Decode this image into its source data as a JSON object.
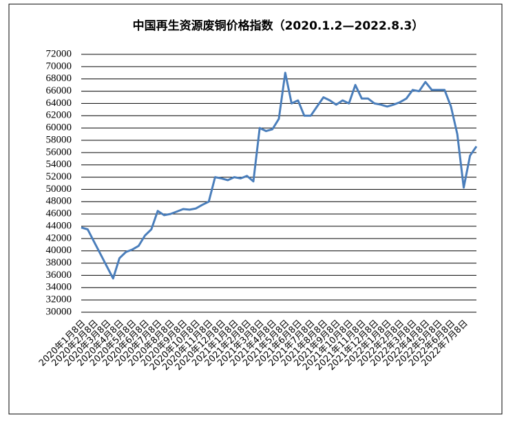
{
  "chart_data": {
    "type": "line",
    "title": "中国再生资源废铜价格指数（2020.1.2—2022.8.3）",
    "categories": [
      "2020年1月8日",
      null,
      "2020年2月8日",
      null,
      "2020年3月8日",
      null,
      "2020年4月8日",
      null,
      "2020年5月8日",
      null,
      "2020年6月8日",
      null,
      "2020年7月8日",
      null,
      "2020年8月8日",
      null,
      "2020年9月8日",
      null,
      "2020年10月8日",
      null,
      "2020年11月8日",
      null,
      "2020年12月8日",
      null,
      "2021年1月8日",
      null,
      "2021年2月8日",
      null,
      "2021年3月8日",
      null,
      "2021年4月8日",
      null,
      "2021年5月8日",
      null,
      "2021年6月8日",
      null,
      "2021年7月8日",
      null,
      "2021年8月8日",
      null,
      "2021年9月8日",
      null,
      "2021年10月8日",
      null,
      "2021年11月8日",
      null,
      "2021年12月8日",
      null,
      "2022年1月8日",
      null,
      "2022年2月8日",
      null,
      "2022年3月8日",
      null,
      "2022年4月8日",
      null,
      "2022年5月8日",
      null,
      "2022年6月8日",
      null,
      "2022年7月8日",
      null,
      null
    ],
    "series": [
      {
        "color": "#4a7ebb",
        "values": [
          43800,
          43500,
          41500,
          39500,
          37500,
          35500,
          38800,
          39800,
          40200,
          40800,
          42500,
          43500,
          46500,
          45800,
          46000,
          46400,
          46800,
          46700,
          46900,
          47500,
          48000,
          52000,
          51800,
          51500,
          52000,
          51800,
          52200,
          51300,
          60000,
          59500,
          59800,
          61500,
          69000,
          64000,
          64500,
          62000,
          62000,
          63500,
          65000,
          64500,
          63800,
          64500,
          64000,
          67000,
          64800,
          64800,
          64000,
          63800,
          63500,
          63800,
          64200,
          64800,
          66200,
          66000,
          67500,
          66200,
          66200,
          66200,
          63500,
          59000,
          50300,
          55500,
          57000
        ]
      }
    ],
    "ylim": [
      30000,
      72000
    ],
    "yticks": [
      30000,
      32000,
      34000,
      36000,
      38000,
      40000,
      42000,
      44000,
      46000,
      48000,
      50000,
      52000,
      54000,
      56000,
      58000,
      60000,
      62000,
      64000,
      66000,
      68000,
      70000,
      72000
    ],
    "grid": true
  }
}
